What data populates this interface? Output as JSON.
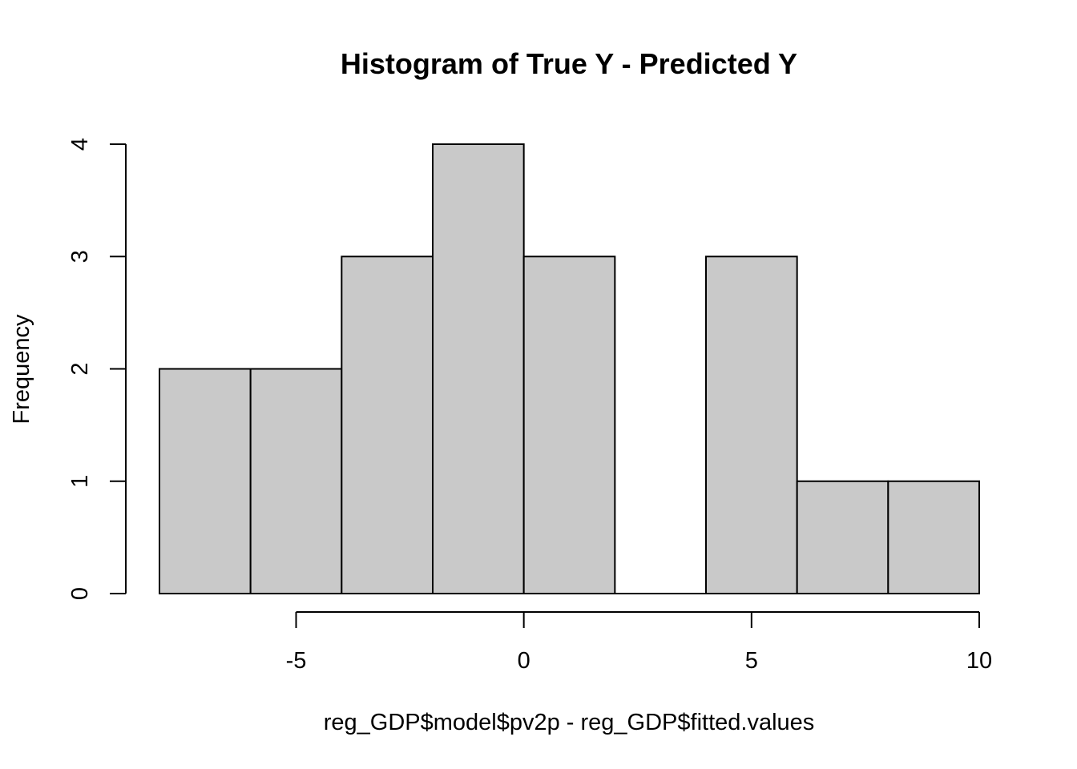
{
  "chart_data": {
    "type": "bar",
    "title": "Histogram of True Y - Predicted Y",
    "xlabel": "reg_GDP$model$pv2p - reg_GDP$fitted.values",
    "ylabel": "Frequency",
    "bins": [
      {
        "from": -8,
        "to": -6,
        "count": 2
      },
      {
        "from": -6,
        "to": -4,
        "count": 2
      },
      {
        "from": -4,
        "to": -2,
        "count": 3
      },
      {
        "from": -2,
        "to": 0,
        "count": 4
      },
      {
        "from": 0,
        "to": 2,
        "count": 3
      },
      {
        "from": 2,
        "to": 4,
        "count": 0
      },
      {
        "from": 4,
        "to": 6,
        "count": 3
      },
      {
        "from": 6,
        "to": 8,
        "count": 1
      },
      {
        "from": 8,
        "to": 10,
        "count": 1
      }
    ],
    "x_ticks": [
      -5,
      0,
      5,
      10
    ],
    "x_tick_labels": [
      "-5",
      "0",
      "5",
      "10"
    ],
    "y_ticks": [
      0,
      1,
      2,
      3,
      4
    ],
    "y_tick_labels": [
      "0",
      "1",
      "2",
      "3",
      "4"
    ],
    "xlim": [
      -8,
      10
    ],
    "ylim": [
      0,
      4
    ],
    "bar_color": "#c9c9c9",
    "grid": false
  }
}
